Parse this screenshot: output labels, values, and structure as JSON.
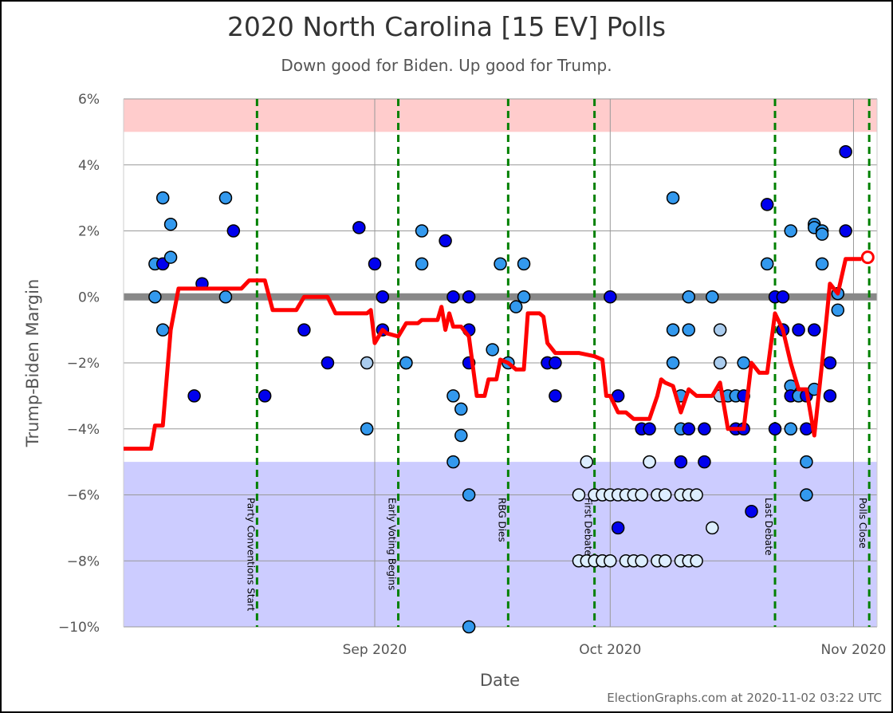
{
  "header": {
    "title": "2020 North Carolina [15 EV] Polls",
    "subtitle": "Down good for Biden. Up good for Trump.",
    "credit": "ElectionGraphs.com at 2020-11-02 03:22 UTC"
  },
  "colors": {
    "trump_zone": "#ffcccc",
    "biden_zone": "#ccccff",
    "average_line": "#ff0000",
    "event_line": "#008000",
    "zero_band": "#888888",
    "grid": "#999999",
    "poll_dark": "#0000ee",
    "poll_medium": "#3399ee",
    "poll_light": "#aaccee",
    "poll_lightest": "#ddeeff"
  },
  "chart_data": {
    "type": "scatter",
    "title": "2020 North Carolina [15 EV] Polls",
    "subtitle": "Down good for Biden. Up good for Trump.",
    "xlabel": "Date",
    "ylabel": "Trump-Biden Margin",
    "xlim": [
      "2020-07-31",
      "2020-11-04"
    ],
    "ylim": [
      -10,
      6
    ],
    "y_ticks": [
      6,
      4,
      2,
      0,
      -2,
      -4,
      -6,
      -8,
      -10
    ],
    "y_tick_labels": [
      "6%",
      "4%",
      "2%",
      "0%",
      "−2%",
      "−4%",
      "−6%",
      "−8%",
      "−10%"
    ],
    "x_ticks": [
      {
        "date": "2020-09-01",
        "label": "Sep 2020"
      },
      {
        "date": "2020-10-01",
        "label": "Oct 2020"
      },
      {
        "date": "2020-11-01",
        "label": "Nov 2020"
      }
    ],
    "shaded_regions": [
      {
        "from": 5,
        "to": 6,
        "color": "#ffcccc"
      },
      {
        "from": -10,
        "to": -5,
        "color": "#ccccff"
      }
    ],
    "events": [
      {
        "date": "2020-08-17",
        "label": "Party Conventions Start"
      },
      {
        "date": "2020-09-04",
        "label": "Early Voting Begins"
      },
      {
        "date": "2020-09-18",
        "label": "RBG Dies"
      },
      {
        "date": "2020-09-29",
        "label": "First Debate"
      },
      {
        "date": "2020-10-22",
        "label": "Last Debate"
      },
      {
        "date": "2020-11-03",
        "label": "Polls Close"
      }
    ],
    "average_series": {
      "name": "",
      "points": [
        [
          "2020-07-31",
          -4.6
        ],
        [
          "2020-08-02",
          -4.6
        ],
        [
          "2020-08-03.5",
          -4.6
        ],
        [
          "2020-08-04",
          -3.9
        ],
        [
          "2020-08-05",
          -3.9
        ],
        [
          "2020-08-06",
          -1.0
        ],
        [
          "2020-08-07",
          0.25
        ],
        [
          "2020-08-10",
          0.25
        ],
        [
          "2020-08-12",
          0.25
        ],
        [
          "2020-08-15",
          0.25
        ],
        [
          "2020-08-16",
          0.5
        ],
        [
          "2020-08-18",
          0.5
        ],
        [
          "2020-08-19",
          -0.4
        ],
        [
          "2020-08-22",
          -0.4
        ],
        [
          "2020-08-23",
          0.0
        ],
        [
          "2020-08-26",
          0.0
        ],
        [
          "2020-08-27",
          -0.5
        ],
        [
          "2020-08-31",
          -0.5
        ],
        [
          "2020-08-31.5",
          -0.4
        ],
        [
          "2020-09-01",
          -1.4
        ],
        [
          "2020-09-02",
          -1.0
        ],
        [
          "2020-09-02.5",
          -1.1
        ],
        [
          "2020-09-04",
          -1.2
        ],
        [
          "2020-09-05",
          -0.8
        ],
        [
          "2020-09-06.5",
          -0.8
        ],
        [
          "2020-09-07",
          -0.7
        ],
        [
          "2020-09-09",
          -0.7
        ],
        [
          "2020-09-09.5",
          -0.3
        ],
        [
          "2020-09-10",
          -1.0
        ],
        [
          "2020-09-10.5",
          -0.5
        ],
        [
          "2020-09-11",
          -0.9
        ],
        [
          "2020-09-12",
          -0.9
        ],
        [
          "2020-09-13",
          -1.2
        ],
        [
          "2020-09-14",
          -3.0
        ],
        [
          "2020-09-15",
          -3.0
        ],
        [
          "2020-09-15.5",
          -2.5
        ],
        [
          "2020-09-16.5",
          -2.5
        ],
        [
          "2020-09-17",
          -1.9
        ],
        [
          "2020-09-18",
          -2.0
        ],
        [
          "2020-09-19",
          -2.2
        ],
        [
          "2020-09-20",
          -2.2
        ],
        [
          "2020-09-20.5",
          -0.5
        ],
        [
          "2020-09-22",
          -0.5
        ],
        [
          "2020-09-22.5",
          -0.6
        ],
        [
          "2020-09-23",
          -1.4
        ],
        [
          "2020-09-24",
          -1.7
        ],
        [
          "2020-09-27",
          -1.7
        ],
        [
          "2020-09-29",
          -1.8
        ],
        [
          "2020-09-30",
          -1.9
        ],
        [
          "2020-09-30.5",
          -3.0
        ],
        [
          "2020-10-01",
          -3.0
        ],
        [
          "2020-10-02",
          -3.5
        ],
        [
          "2020-10-03",
          -3.5
        ],
        [
          "2020-10-04",
          -3.7
        ],
        [
          "2020-10-06",
          -3.7
        ],
        [
          "2020-10-07",
          -3.0
        ],
        [
          "2020-10-07.5",
          -2.5
        ],
        [
          "2020-10-08",
          -2.6
        ],
        [
          "2020-10-09",
          -2.7
        ],
        [
          "2020-10-10",
          -3.5
        ],
        [
          "2020-10-11",
          -2.8
        ],
        [
          "2020-10-12",
          -3.0
        ],
        [
          "2020-10-13",
          -3.0
        ],
        [
          "2020-10-14",
          -3.0
        ],
        [
          "2020-10-15",
          -2.6
        ],
        [
          "2020-10-16",
          -4.0
        ],
        [
          "2020-10-18",
          -4.0
        ],
        [
          "2020-10-19",
          -2.0
        ],
        [
          "2020-10-20",
          -2.3
        ],
        [
          "2020-10-21",
          -2.3
        ],
        [
          "2020-10-22",
          -0.5
        ],
        [
          "2020-10-23",
          -1.0
        ],
        [
          "2020-10-24",
          -2.0
        ],
        [
          "2020-10-25",
          -2.8
        ],
        [
          "2020-10-26",
          -2.8
        ],
        [
          "2020-10-27",
          -4.2
        ],
        [
          "2020-10-28",
          -2.0
        ],
        [
          "2020-10-29",
          0.4
        ],
        [
          "2020-10-30",
          0.1
        ],
        [
          "2020-10-31",
          1.15
        ],
        [
          "2020-11-02",
          1.15
        ]
      ]
    },
    "final_average": {
      "date": "2020-11-02",
      "value": 1.2
    },
    "polls": [
      [
        "2020-08-04",
        1.0,
        "medium"
      ],
      [
        "2020-08-04",
        0.0,
        "medium"
      ],
      [
        "2020-08-05",
        1.0,
        "dark"
      ],
      [
        "2020-08-05",
        -1.0,
        "medium"
      ],
      [
        "2020-08-05",
        3.0,
        "medium"
      ],
      [
        "2020-08-06",
        2.2,
        "medium"
      ],
      [
        "2020-08-06",
        1.2,
        "medium"
      ],
      [
        "2020-08-09",
        -3.0,
        "dark"
      ],
      [
        "2020-08-10",
        0.4,
        "dark"
      ],
      [
        "2020-08-13",
        3.0,
        "medium"
      ],
      [
        "2020-08-13",
        0.0,
        "medium"
      ],
      [
        "2020-08-14",
        2.0,
        "dark"
      ],
      [
        "2020-08-18",
        -3.0,
        "dark"
      ],
      [
        "2020-08-23",
        -1.0,
        "dark"
      ],
      [
        "2020-08-26",
        -2.0,
        "dark"
      ],
      [
        "2020-08-30",
        2.1,
        "dark"
      ],
      [
        "2020-08-31",
        -2.0,
        "light"
      ],
      [
        "2020-08-31",
        -4.0,
        "medium"
      ],
      [
        "2020-09-01",
        1.0,
        "dark"
      ],
      [
        "2020-09-02",
        0.0,
        "dark"
      ],
      [
        "2020-09-02",
        -1.0,
        "dark"
      ],
      [
        "2020-09-05",
        -2.0,
        "medium"
      ],
      [
        "2020-09-05",
        -2.0,
        "medium"
      ],
      [
        "2020-09-07",
        2.0,
        "medium"
      ],
      [
        "2020-09-07",
        1.0,
        "medium"
      ],
      [
        "2020-09-10",
        1.7,
        "dark"
      ],
      [
        "2020-09-11",
        -3.0,
        "medium"
      ],
      [
        "2020-09-11",
        -5.0,
        "medium"
      ],
      [
        "2020-09-11",
        0.0,
        "dark"
      ],
      [
        "2020-09-12",
        -3.4,
        "medium"
      ],
      [
        "2020-09-12",
        -4.2,
        "medium"
      ],
      [
        "2020-09-13",
        0.0,
        "dark"
      ],
      [
        "2020-09-13",
        -1.0,
        "dark"
      ],
      [
        "2020-09-13",
        -2.0,
        "dark"
      ],
      [
        "2020-09-13",
        -6.0,
        "medium"
      ],
      [
        "2020-09-13",
        -10.0,
        "medium"
      ],
      [
        "2020-09-16",
        -1.6,
        "medium"
      ],
      [
        "2020-09-17",
        1.0,
        "medium"
      ],
      [
        "2020-09-18",
        -2.0,
        "medium"
      ],
      [
        "2020-09-19",
        -0.3,
        "medium"
      ],
      [
        "2020-09-20",
        1.0,
        "medium"
      ],
      [
        "2020-09-20",
        0.0,
        "medium"
      ],
      [
        "2020-09-23",
        -2.0,
        "dark"
      ],
      [
        "2020-09-23",
        -2.0,
        "dark"
      ],
      [
        "2020-09-24",
        -3.0,
        "dark"
      ],
      [
        "2020-09-24",
        -2.0,
        "dark"
      ],
      [
        "2020-09-27",
        -8.0,
        "lightest"
      ],
      [
        "2020-09-27",
        -6.0,
        "lightest"
      ],
      [
        "2020-09-28",
        -5.0,
        "lightest"
      ],
      [
        "2020-09-28",
        -8.0,
        "lightest"
      ],
      [
        "2020-09-29",
        -6.0,
        "lightest"
      ],
      [
        "2020-09-29",
        -8.0,
        "lightest"
      ],
      [
        "2020-09-30",
        -6.0,
        "lightest"
      ],
      [
        "2020-09-30",
        -8.0,
        "lightest"
      ],
      [
        "2020-09-30",
        -8.0,
        "lightest"
      ],
      [
        "2020-10-01",
        -6.0,
        "lightest"
      ],
      [
        "2020-10-01",
        -8.0,
        "lightest"
      ],
      [
        "2020-10-01",
        0.0,
        "dark"
      ],
      [
        "2020-10-02",
        -3.0,
        "dark"
      ],
      [
        "2020-10-02",
        -7.0,
        "dark"
      ],
      [
        "2020-10-02",
        -6.0,
        "lightest"
      ],
      [
        "2020-10-03",
        -8.0,
        "lightest"
      ],
      [
        "2020-10-03",
        -6.0,
        "lightest"
      ],
      [
        "2020-10-04",
        -8.0,
        "lightest"
      ],
      [
        "2020-10-04",
        -6.0,
        "lightest"
      ],
      [
        "2020-10-05",
        -6.0,
        "lightest"
      ],
      [
        "2020-10-05",
        -4.0,
        "dark"
      ],
      [
        "2020-10-05",
        -8.0,
        "lightest"
      ],
      [
        "2020-10-06",
        -5.0,
        "dark"
      ],
      [
        "2020-10-06",
        -5.0,
        "lightest"
      ],
      [
        "2020-10-06",
        -4.0,
        "dark"
      ],
      [
        "2020-10-07",
        -8.0,
        "lightest"
      ],
      [
        "2020-10-07",
        -6.0,
        "lightest"
      ],
      [
        "2020-10-08",
        -8.0,
        "lightest"
      ],
      [
        "2020-10-08",
        -6.0,
        "lightest"
      ],
      [
        "2020-10-09",
        -2.0,
        "medium"
      ],
      [
        "2020-10-09",
        3.0,
        "medium"
      ],
      [
        "2020-10-09",
        -1.0,
        "medium"
      ],
      [
        "2020-10-10",
        -3.0,
        "medium"
      ],
      [
        "2020-10-10",
        -4.0,
        "medium"
      ],
      [
        "2020-10-10",
        -5.0,
        "dark"
      ],
      [
        "2020-10-10",
        -6.0,
        "lightest"
      ],
      [
        "2020-10-10",
        -8.0,
        "lightest"
      ],
      [
        "2020-10-11",
        0.0,
        "medium"
      ],
      [
        "2020-10-11",
        -1.0,
        "medium"
      ],
      [
        "2020-10-11",
        -4.0,
        "dark"
      ],
      [
        "2020-10-11",
        -6.0,
        "lightest"
      ],
      [
        "2020-10-11",
        -8.0,
        "lightest"
      ],
      [
        "2020-10-12",
        -6.0,
        "lightest"
      ],
      [
        "2020-10-12",
        -8.0,
        "lightest"
      ],
      [
        "2020-10-13",
        -5.0,
        "dark"
      ],
      [
        "2020-10-13",
        -4.0,
        "dark"
      ],
      [
        "2020-10-14",
        -7.0,
        "lightest"
      ],
      [
        "2020-10-14",
        0.0,
        "medium"
      ],
      [
        "2020-10-15",
        -1.0,
        "light"
      ],
      [
        "2020-10-15",
        -2.0,
        "light"
      ],
      [
        "2020-10-15",
        -3.0,
        "light"
      ],
      [
        "2020-10-16",
        -3.0,
        "medium"
      ],
      [
        "2020-10-17",
        -3.0,
        "medium"
      ],
      [
        "2020-10-17",
        -4.0,
        "dark"
      ],
      [
        "2020-10-18",
        -2.0,
        "medium"
      ],
      [
        "2020-10-18",
        -3.0,
        "dark"
      ],
      [
        "2020-10-18",
        -4.0,
        "dark"
      ],
      [
        "2020-10-19",
        -6.5,
        "dark"
      ],
      [
        "2020-10-21",
        1.0,
        "medium"
      ],
      [
        "2020-10-21",
        2.8,
        "dark"
      ],
      [
        "2020-10-22",
        -4.0,
        "dark"
      ],
      [
        "2020-10-22",
        0.0,
        "dark"
      ],
      [
        "2020-10-23",
        -1.0,
        "medium"
      ],
      [
        "2020-10-23",
        0.0,
        "dark"
      ],
      [
        "2020-10-23",
        -1.0,
        "dark"
      ],
      [
        "2020-10-24",
        -2.7,
        "medium"
      ],
      [
        "2020-10-24",
        2.0,
        "medium"
      ],
      [
        "2020-10-24",
        -3.0,
        "dark"
      ],
      [
        "2020-10-24",
        -4.0,
        "medium"
      ],
      [
        "2020-10-25",
        -3.0,
        "dark"
      ],
      [
        "2020-10-25",
        -1.0,
        "dark"
      ],
      [
        "2020-10-25",
        -3.0,
        "medium"
      ],
      [
        "2020-10-26",
        -3.0,
        "dark"
      ],
      [
        "2020-10-26",
        -4.0,
        "dark"
      ],
      [
        "2020-10-26",
        -5.0,
        "medium"
      ],
      [
        "2020-10-26",
        -6.0,
        "medium"
      ],
      [
        "2020-10-27",
        -2.8,
        "medium"
      ],
      [
        "2020-10-27",
        -1.0,
        "dark"
      ],
      [
        "2020-10-27",
        2.2,
        "medium"
      ],
      [
        "2020-10-27",
        2.1,
        "medium"
      ],
      [
        "2020-10-28",
        2.0,
        "medium"
      ],
      [
        "2020-10-28",
        1.9,
        "medium"
      ],
      [
        "2020-10-28",
        1.0,
        "medium"
      ],
      [
        "2020-10-29",
        -2.0,
        "dark"
      ],
      [
        "2020-10-29",
        -3.0,
        "dark"
      ],
      [
        "2020-10-30",
        0.1,
        "medium"
      ],
      [
        "2020-10-30",
        -0.4,
        "medium"
      ],
      [
        "2020-10-31",
        4.4,
        "dark"
      ],
      [
        "2020-10-31",
        2.0,
        "dark"
      ]
    ]
  }
}
